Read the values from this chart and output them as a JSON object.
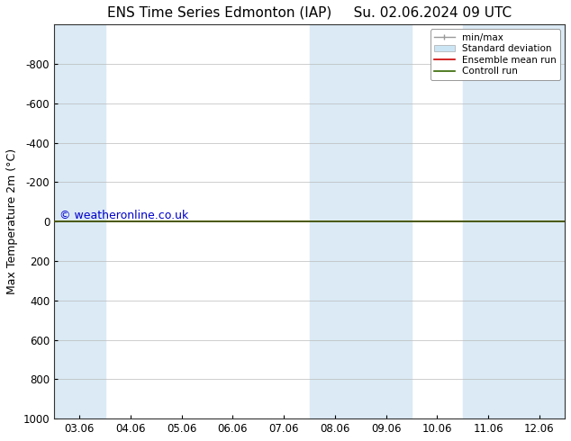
{
  "title_left": "ENS Time Series Edmonton (IAP)",
  "title_right": "Su. 02.06.2024 09 UTC",
  "ylabel": "Max Temperature 2m (°C)",
  "watermark": "© weatheronline.co.uk",
  "watermark_color": "#0000cc",
  "ylim_bottom": 1000,
  "ylim_top": -1000,
  "yticks": [
    -800,
    -600,
    -400,
    -200,
    0,
    200,
    400,
    600,
    800,
    1000
  ],
  "xtick_labels": [
    "03.06",
    "04.06",
    "05.06",
    "06.06",
    "07.06",
    "08.06",
    "09.06",
    "10.06",
    "11.06",
    "12.06"
  ],
  "num_xticks": 10,
  "shaded_bands": [
    {
      "xmin": 0.0,
      "xmax": 1.0
    },
    {
      "xmin": 5.0,
      "xmax": 7.0
    },
    {
      "xmin": 8.0,
      "xmax": 10.0
    }
  ],
  "shaded_color": "#dbeaf5",
  "hline_y": 0,
  "hline_color_green": "#336600",
  "hline_color_red": "#cc0000",
  "hline_linewidth": 1.2,
  "background_color": "#ffffff",
  "plot_bg_color": "#ffffff",
  "border_color": "#000000",
  "title_fontsize": 11,
  "axis_label_fontsize": 9,
  "tick_fontsize": 8.5,
  "watermark_fontsize": 9
}
